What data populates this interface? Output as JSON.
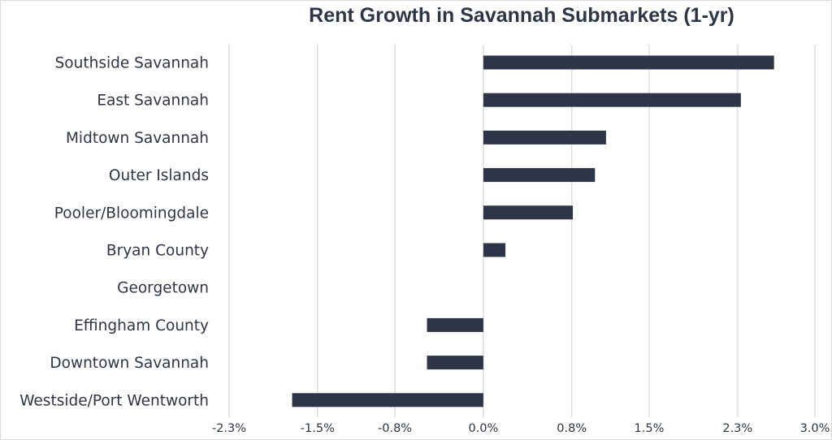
{
  "chart_data": {
    "type": "bar",
    "orientation": "horizontal",
    "title": "Rent Growth in Savannah Submarkets (1-yr)",
    "xlabel": "",
    "ylabel": "",
    "categories": [
      "Southside Savannah",
      "East Savannah",
      "Midtown Savannah",
      "Outer Islands",
      "Pooler/Bloomingdale",
      "Bryan County",
      "Georgetown",
      "Effingham County",
      "Downtown Savannah",
      "Westside/Port Wentworth"
    ],
    "values": [
      2.63,
      2.33,
      1.11,
      1.01,
      0.81,
      0.2,
      0.0,
      -0.51,
      -0.51,
      -1.73
    ],
    "xlim": [
      -2.3,
      3.0
    ],
    "xticks": [
      -2.3,
      -1.5,
      -0.8,
      0.0,
      0.8,
      1.5,
      2.3,
      3.0
    ],
    "xtick_labels": [
      "-2.3%",
      "-1.5%",
      "-0.8%",
      "0.0%",
      "0.8%",
      "1.5%",
      "2.3%",
      "3.0%"
    ],
    "grid": "vertical",
    "legend": "none",
    "colors": {
      "bar": "#2e3546",
      "grid": "#d9d9d9",
      "text": "#2e3546",
      "title": "#2e3546"
    }
  }
}
